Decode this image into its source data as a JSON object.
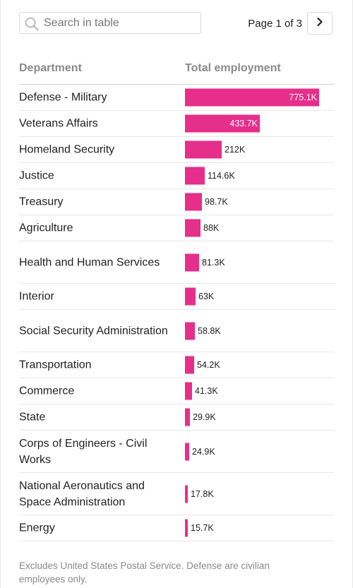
{
  "search": {
    "placeholder": "Search in table",
    "icon": "search-icon"
  },
  "pager": {
    "label": "Page 1 of 3",
    "next_icon": "chevron-right-icon"
  },
  "colors": {
    "bar": "#e62e8b"
  },
  "chart_data": {
    "type": "bar",
    "columns": [
      "Department",
      "Total employment"
    ],
    "categories": [
      "Defense - Military",
      "Veterans Affairs",
      "Homeland Security",
      "Justice",
      "Treasury",
      "Agriculture",
      "Health and Human Services",
      "Interior",
      "Social Security Administration",
      "Transportation",
      "Commerce",
      "State",
      "Corps of Engineers - Civil Works",
      "National Aeronautics and Space Administration",
      "Energy"
    ],
    "values": [
      775.1,
      433.7,
      212,
      114.6,
      98.7,
      88,
      81.3,
      63,
      58.8,
      54.2,
      41.3,
      29.9,
      24.9,
      17.8,
      15.7
    ],
    "labels": [
      "775.1K",
      "433.7K",
      "212K",
      "114.6K",
      "98.7K",
      "88K",
      "81.3K",
      "63K",
      "58.8K",
      "54.2K",
      "41.3K",
      "29.9K",
      "24.9K",
      "17.8K",
      "15.7K"
    ],
    "unit": "thousands"
  },
  "footnote": "Excludes United States Postal Service. Defense are civilian employees only."
}
